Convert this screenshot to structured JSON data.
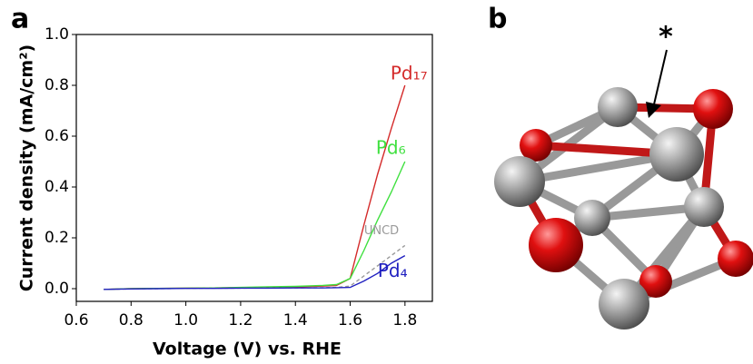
{
  "panel_labels": [
    "a",
    "b"
  ],
  "annotation": "*",
  "chart_data": {
    "type": "line",
    "x_label": "Voltage (V) vs. RHE",
    "y_label": "Current density (mA/cm²)",
    "x": [
      0.7,
      0.8,
      0.9,
      1.0,
      1.1,
      1.2,
      1.3,
      1.4,
      1.5,
      1.55,
      1.6,
      1.65,
      1.7,
      1.75,
      1.8
    ],
    "series": [
      {
        "name": "Pd₁₇",
        "color": "#d42a2a",
        "values": [
          -0.003,
          0,
          0.001,
          0.002,
          0.003,
          0.004,
          0.005,
          0.007,
          0.01,
          0.013,
          0.04,
          0.25,
          0.45,
          0.63,
          0.8
        ]
      },
      {
        "name": "Pd₆",
        "color": "#3fe03f",
        "values": [
          -0.003,
          0,
          0.001,
          0.002,
          0.003,
          0.005,
          0.007,
          0.009,
          0.013,
          0.016,
          0.04,
          0.15,
          0.27,
          0.38,
          0.5
        ]
      },
      {
        "name": "UNCD",
        "color": "#9a9a9a",
        "dashed": true,
        "values": [
          -0.003,
          -0.001,
          0,
          0.001,
          0.002,
          0.002,
          0.003,
          0.003,
          0.004,
          0.005,
          0.01,
          0.05,
          0.09,
          0.13,
          0.17
        ]
      },
      {
        "name": "Pd₄",
        "color": "#2020c0",
        "values": [
          -0.003,
          -0.001,
          0,
          0.001,
          0.001,
          0.002,
          0.002,
          0.003,
          0.003,
          0.004,
          0.005,
          0.03,
          0.06,
          0.1,
          0.13
        ]
      }
    ],
    "xlim": [
      0.6,
      1.9
    ],
    "ylim": [
      -0.05,
      1.0
    ],
    "xticks": [
      0.6,
      0.8,
      {
        "value": 1,
        "label": "1.0"
      },
      1.2,
      1.4,
      1.6,
      1.8
    ],
    "yticks": [
      {
        "value": 0,
        "label": "0.0"
      },
      0.2,
      0.4,
      0.6,
      0.8,
      {
        "value": 1,
        "label": "1.0"
      }
    ]
  }
}
